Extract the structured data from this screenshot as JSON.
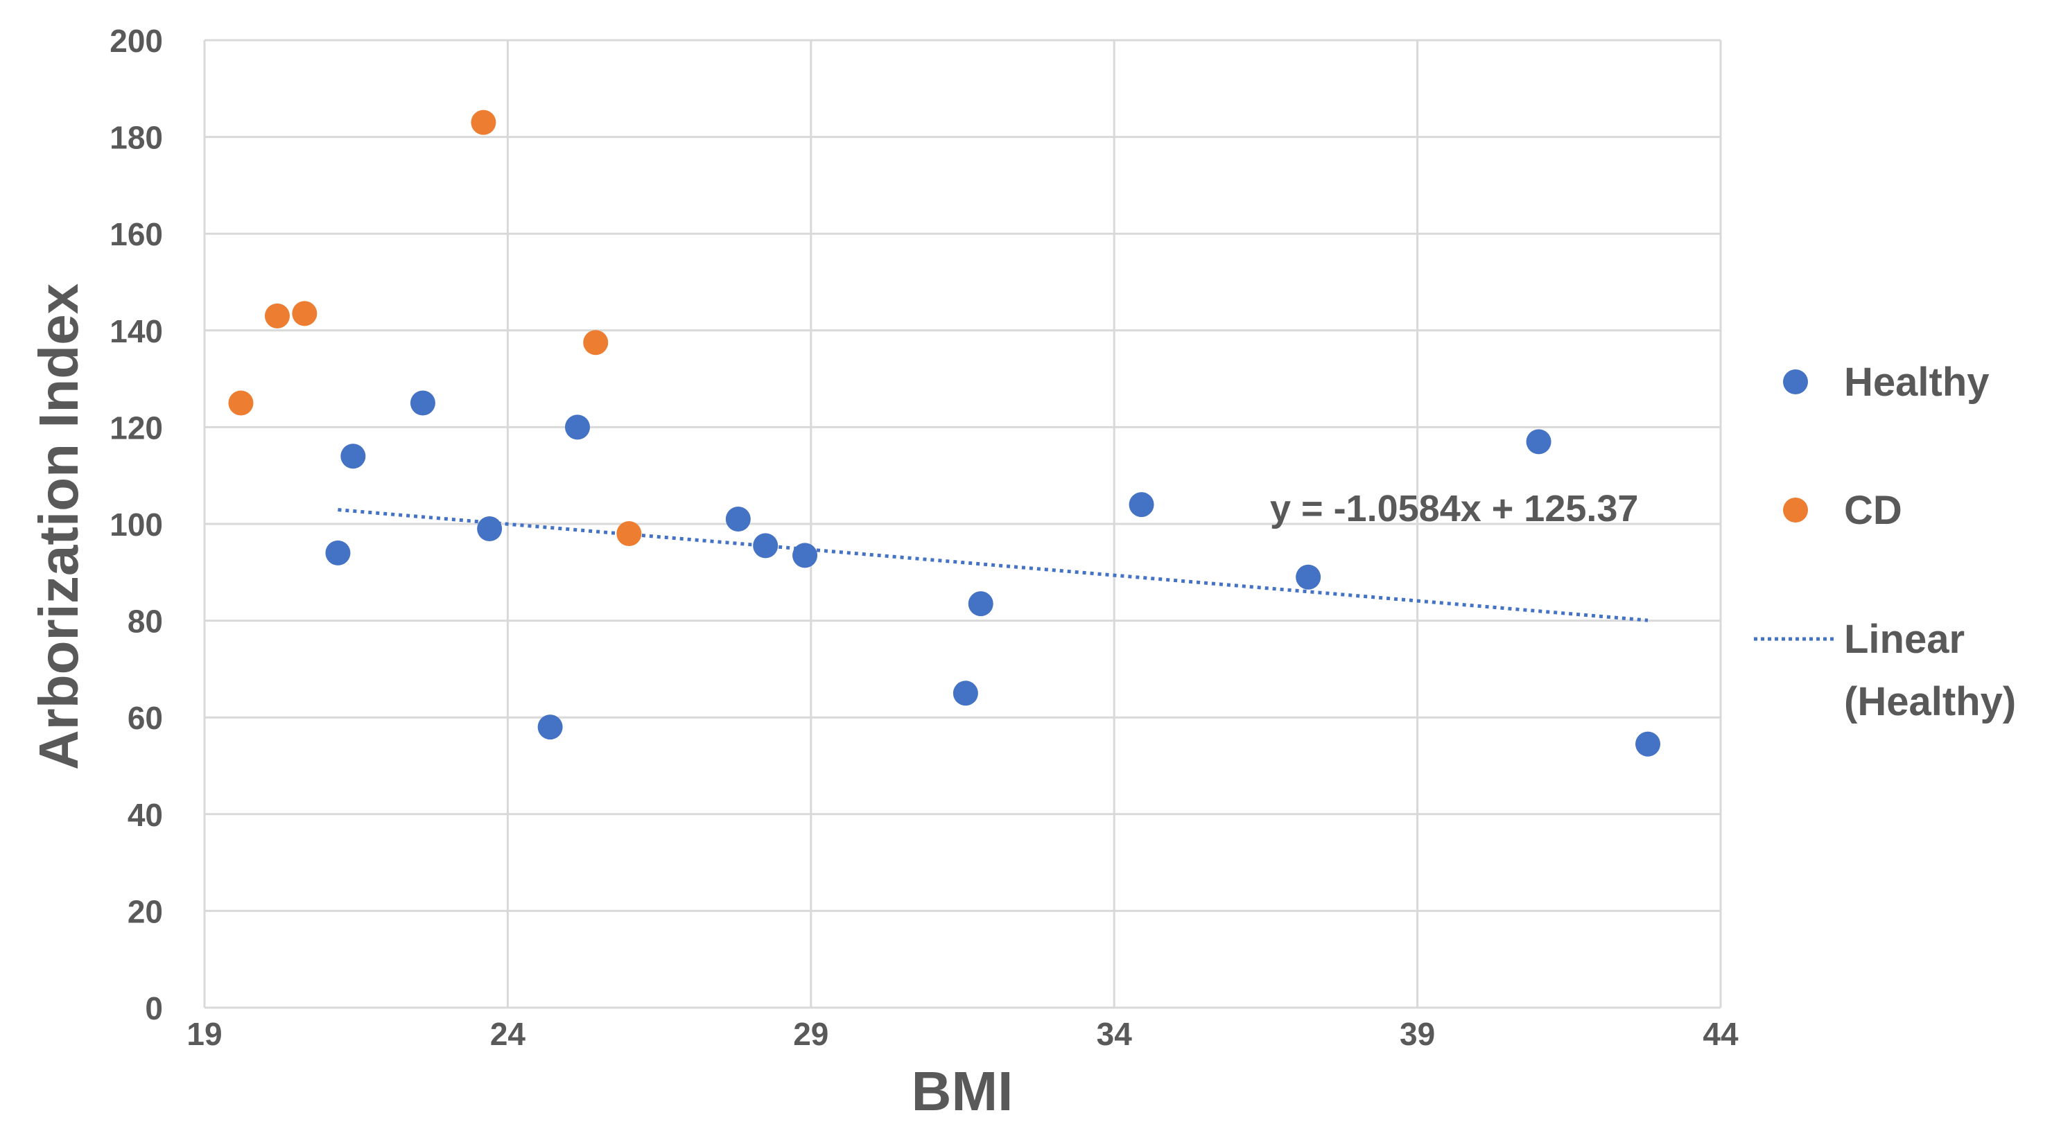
{
  "chart_data": {
    "type": "scatter",
    "title": "",
    "xlabel": "BMI",
    "ylabel": "Arborization Index",
    "xlim": [
      19,
      44
    ],
    "ylim": [
      0,
      200
    ],
    "x_ticks": [
      19,
      24,
      29,
      34,
      39,
      44
    ],
    "y_ticks": [
      0,
      20,
      40,
      60,
      80,
      100,
      120,
      140,
      160,
      180,
      200
    ],
    "grid": true,
    "legend_position": "right",
    "colors": {
      "Healthy": "#4472C4",
      "CD": "#ED7D31",
      "Linear (Healthy)": "#4472C4"
    },
    "series": [
      {
        "name": "Healthy",
        "points": [
          [
            21.2,
            94
          ],
          [
            21.45,
            114
          ],
          [
            22.6,
            125
          ],
          [
            23.7,
            99
          ],
          [
            24.7,
            58
          ],
          [
            25.15,
            120
          ],
          [
            27.8,
            101
          ],
          [
            28.25,
            95.5
          ],
          [
            28.9,
            93.5
          ],
          [
            31.55,
            65
          ],
          [
            31.8,
            83.5
          ],
          [
            34.45,
            104
          ],
          [
            37.2,
            89
          ],
          [
            41.0,
            117
          ],
          [
            42.8,
            54.5
          ]
        ]
      },
      {
        "name": "CD",
        "points": [
          [
            19.6,
            125
          ],
          [
            20.2,
            143
          ],
          [
            20.65,
            143.5
          ],
          [
            23.6,
            183
          ],
          [
            25.45,
            137.5
          ],
          [
            26.0,
            98
          ]
        ]
      }
    ],
    "trendline": {
      "name": "Linear (Healthy)",
      "series": "Healthy",
      "slope": -1.0584,
      "intercept": 125.37,
      "x_range": [
        21.2,
        42.8
      ],
      "equation_label": "y = -1.0584x + 125.37"
    },
    "legend": {
      "items": [
        "Healthy",
        "CD"
      ],
      "trend_line1": "Linear",
      "trend_line2": "(Healthy)"
    }
  }
}
